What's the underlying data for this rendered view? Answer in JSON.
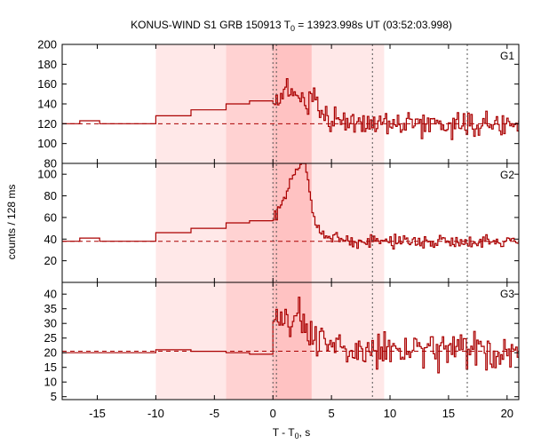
{
  "chart_data": {
    "type": "line",
    "title": "KONUS-WIND S1 GRB 150913 T",
    "title_subscript": "0",
    "title_suffix": " = 13923.998s UT (03:52:03.998)",
    "xlabel": "T - T",
    "xlabel_subscript": "0",
    "xlabel_suffix": ", s",
    "ylabel": "counts / 128 ms",
    "xlim": [
      -18,
      21
    ],
    "x_ticks": [
      -15,
      -10,
      -5,
      0,
      5,
      10,
      15,
      20
    ],
    "shaded_regions": [
      {
        "from": -10,
        "to": 9.5,
        "color": "#ffe8e8"
      },
      {
        "from": -4,
        "to": 3.3,
        "color": "#ffd2d2"
      },
      {
        "from": 0,
        "to": 3.3,
        "color": "#ffc2c2"
      }
    ],
    "vertical_markers": [
      0,
      0.3,
      8.5,
      16.6
    ],
    "panels": [
      {
        "name": "G1",
        "ylim": [
          80,
          200
        ],
        "y_ticks": [
          80,
          100,
          120,
          140,
          160,
          180,
          200
        ],
        "background_level": 120,
        "pre_trigger_steps": [
          {
            "x0": -18,
            "x1": -16.5,
            "y": 120
          },
          {
            "x0": -16.5,
            "x1": -14.8,
            "y": 123
          },
          {
            "x0": -14.8,
            "x1": -10,
            "y": 120
          },
          {
            "x0": -10,
            "x1": -7,
            "y": 128
          },
          {
            "x0": -7,
            "x1": -4,
            "y": 134
          },
          {
            "x0": -4,
            "x1": -2,
            "y": 140
          },
          {
            "x0": -2,
            "x1": 0,
            "y": 143
          }
        ],
        "burst": {
          "peak_time": 1.2,
          "peak_amplitude": 32,
          "second_peak_time": 3.0,
          "second_peak_amplitude": 18,
          "decay_seconds": 2.5,
          "noise_amplitude": 8
        }
      },
      {
        "name": "G2",
        "ylim": [
          0,
          110
        ],
        "y_ticks": [
          20,
          40,
          60,
          80,
          100
        ],
        "background_level": 38,
        "pre_trigger_steps": [
          {
            "x0": -18,
            "x1": -16.5,
            "y": 38
          },
          {
            "x0": -16.5,
            "x1": -14.8,
            "y": 41
          },
          {
            "x0": -14.8,
            "x1": -10,
            "y": 38
          },
          {
            "x0": -10,
            "x1": -7,
            "y": 46
          },
          {
            "x0": -7,
            "x1": -4,
            "y": 50
          },
          {
            "x0": -4,
            "x1": -2,
            "y": 55
          },
          {
            "x0": -2,
            "x1": 0,
            "y": 57
          }
        ],
        "burst": {
          "peak_time": 1.0,
          "peak_amplitude": 35,
          "second_peak_time": 2.4,
          "second_peak_amplitude": 55,
          "decay_seconds": 1.6,
          "noise_amplitude": 4
        }
      },
      {
        "name": "G3",
        "ylim": [
          4,
          44
        ],
        "y_ticks": [
          5,
          10,
          15,
          20,
          25,
          30,
          35,
          40
        ],
        "background_level": 20.5,
        "pre_trigger_steps": [
          {
            "x0": -18,
            "x1": -10,
            "y": 20
          },
          {
            "x0": -10,
            "x1": -7,
            "y": 21
          },
          {
            "x0": -7,
            "x1": -4,
            "y": 20.5
          },
          {
            "x0": -4,
            "x1": -2,
            "y": 20
          },
          {
            "x0": -2,
            "x1": 0,
            "y": 19.5
          }
        ],
        "burst": {
          "peak_time": 0.3,
          "peak_amplitude": 12,
          "second_peak_time": 2.0,
          "second_peak_amplitude": 8,
          "decay_seconds": 2.0,
          "noise_amplitude": 4.5
        }
      }
    ]
  },
  "colors": {
    "data_line": "#aa0000",
    "background_line": "#aa0000",
    "marker_line": "#555555",
    "axis": "#000000"
  }
}
